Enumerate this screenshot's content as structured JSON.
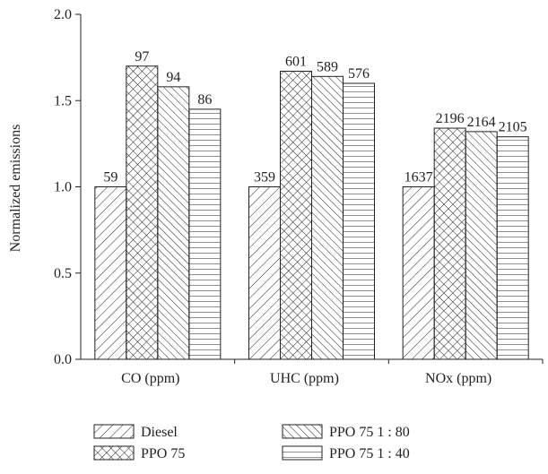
{
  "chart_data": {
    "type": "bar",
    "y_label": "Normalized emissions",
    "categories": [
      "CO (ppm)",
      "UHC (ppm)",
      "NOx (ppm)"
    ],
    "series": [
      {
        "name": "Diesel",
        "values": [
          1.0,
          1.0,
          1.0
        ],
        "labels": [
          59,
          359,
          1637
        ]
      },
      {
        "name": "PPO 75",
        "values": [
          1.7,
          1.67,
          1.34
        ],
        "labels": [
          97,
          601,
          2196
        ]
      },
      {
        "name": "PPO 75 1 : 80",
        "values": [
          1.58,
          1.64,
          1.32
        ],
        "labels": [
          94,
          589,
          2164
        ]
      },
      {
        "name": "PPO 75 1 : 40",
        "values": [
          1.45,
          1.6,
          1.29
        ],
        "labels": [
          86,
          576,
          2105
        ]
      }
    ],
    "ylim": [
      0,
      2.0
    ],
    "yticks": [
      {
        "value": 0,
        "label": "0.0"
      },
      {
        "value": 0.5,
        "label": "0.5"
      },
      {
        "value": 1.0,
        "label": "1.0"
      },
      {
        "value": 1.5,
        "label": "1.5"
      },
      {
        "value": 2.0,
        "label": "2.0"
      }
    ],
    "legend": "bottom"
  }
}
